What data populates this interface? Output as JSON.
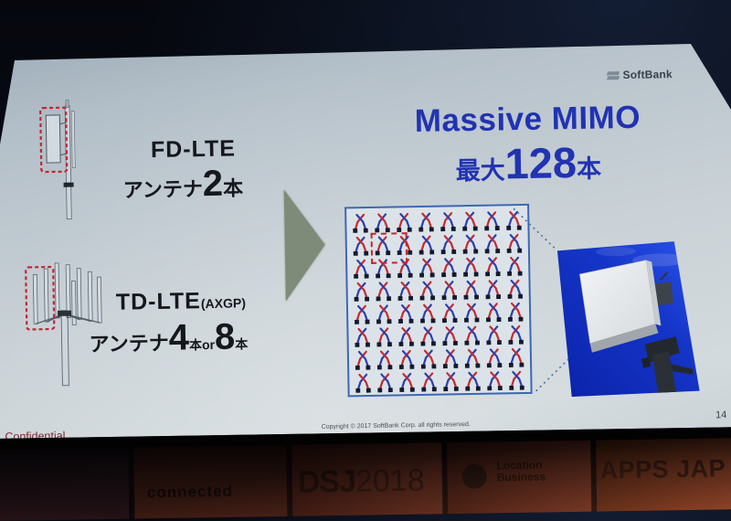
{
  "slide": {
    "brand": "SoftBank",
    "fd": {
      "title": "FD-LTE",
      "count_prefix": "アンテナ",
      "count": "2",
      "count_unit": "本"
    },
    "td": {
      "title": "TD-LTE",
      "title_suffix": "(AXGP)",
      "count_prefix": "アンテナ",
      "count1": "4",
      "unit1": "本",
      "conjunction": "or",
      "count2": "8",
      "unit2": "本"
    },
    "mimo": {
      "title": "Massive MIMO",
      "max_prefix": "最大",
      "max_count": "128",
      "max_unit": "本"
    },
    "footer": {
      "confidential": "Confidential",
      "copyright": "Copyright © 2017 SoftBank Corp. all rights reserved.",
      "page": "14"
    }
  },
  "grid": {
    "rows": 8,
    "cols": 8,
    "colors": {
      "red": "#c22b35",
      "blue": "#2b3fae",
      "foot": "#141a2e",
      "border": "#3c67b3"
    },
    "highlight": {
      "row": 1,
      "col": 1
    }
  },
  "stage": {
    "panels": [
      {
        "text": ""
      },
      {
        "text": "connected"
      },
      {
        "logo": "DSJ",
        "year": "2018"
      },
      {
        "line1": "Location",
        "line2": "Business"
      },
      {
        "text": "APPS JAP"
      }
    ]
  },
  "colors": {
    "title_blue": "#2133b2",
    "text_black": "#15171d",
    "confidential_red": "#79242f",
    "arrow_green": "#7e8b79",
    "sky_blue": "#1535c8"
  }
}
